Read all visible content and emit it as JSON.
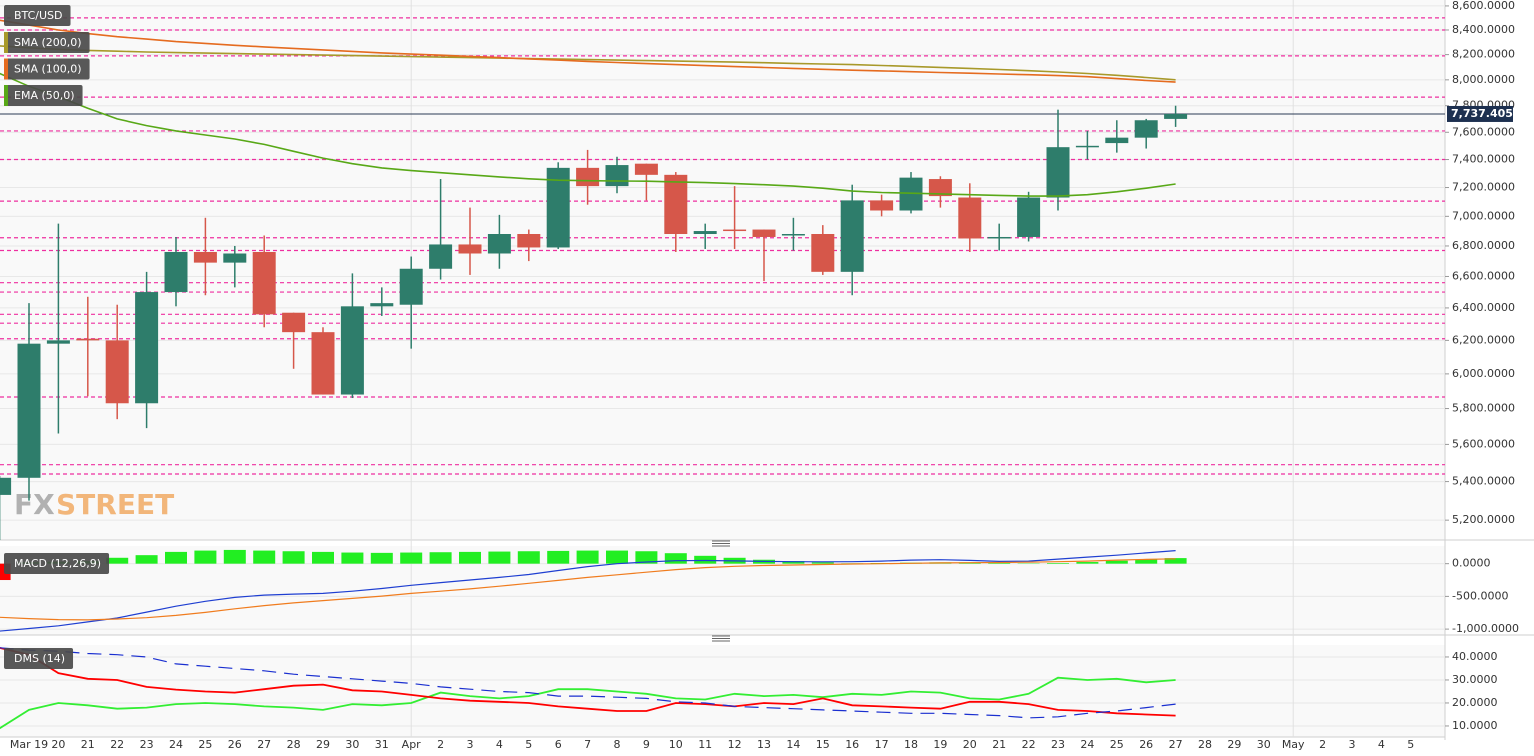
{
  "chart_data": [
    {
      "type": "candlestick",
      "title": "BTC/USD",
      "watermark": [
        "FX",
        "STREET"
      ],
      "log_scale": true,
      "ylim": [
        5100,
        8650
      ],
      "yticks": [
        {
          "value": 5200,
          "label": "5,200.0000"
        },
        {
          "value": 5400,
          "label": "5,400.0000"
        },
        {
          "value": 5600,
          "label": "5,600.0000"
        },
        {
          "value": 5800,
          "label": "5,800.0000"
        },
        {
          "value": 6000,
          "label": "6,000.0000"
        },
        {
          "value": 6200,
          "label": "6,200.0000"
        },
        {
          "value": 6400,
          "label": "6,400.0000"
        },
        {
          "value": 6600,
          "label": "6,600.0000"
        },
        {
          "value": 6800,
          "label": "6,800.0000"
        },
        {
          "value": 7000,
          "label": "7,000.0000"
        },
        {
          "value": 7200,
          "label": "7,200.0000"
        },
        {
          "value": 7400,
          "label": "7,400.0000"
        },
        {
          "value": 7600,
          "label": "7,600.0000"
        },
        {
          "value": 7800,
          "label": "7,800.0000"
        },
        {
          "value": 8000,
          "label": "8,000.0000"
        },
        {
          "value": 8200,
          "label": "8,200.0000"
        },
        {
          "value": 8400,
          "label": "8,400.0000"
        },
        {
          "value": 8600,
          "label": "8,600.0000"
        }
      ],
      "up_color": "#2e7d6b",
      "down_color": "#d6574a",
      "open": [
        5330,
        5420,
        6180,
        6210,
        6200,
        5830,
        6500,
        6760,
        6690,
        6760,
        6370,
        6250,
        5880,
        6410,
        6420,
        6650,
        6810,
        6750,
        6880,
        6790,
        7340,
        7210,
        7370,
        7290,
        6880,
        6910,
        6910,
        6870,
        6880,
        6630,
        7110,
        7040,
        7260,
        7130,
        6850,
        6860,
        7130,
        7490,
        7520,
        7560,
        7700,
        null,
        null,
        null,
        null,
        null,
        null,
        null,
        null
      ],
      "high": [
        5430,
        6430,
        6950,
        6470,
        6420,
        6630,
        6860,
        6990,
        6800,
        6870,
        6370,
        6280,
        6620,
        6530,
        6730,
        7260,
        7060,
        7010,
        6910,
        7380,
        7470,
        7420,
        7370,
        7310,
        6950,
        7210,
        6910,
        6990,
        6940,
        7220,
        7150,
        7310,
        7280,
        7230,
        6950,
        7170,
        7770,
        7610,
        7690,
        7700,
        7800,
        null,
        null,
        null,
        null,
        null,
        null,
        null,
        null
      ],
      "low": [
        5100,
        5300,
        5660,
        5870,
        5740,
        5690,
        6410,
        6480,
        6530,
        6280,
        6030,
        5880,
        5860,
        6350,
        6150,
        6580,
        6610,
        6650,
        6700,
        6780,
        7080,
        7160,
        7110,
        6760,
        6780,
        6780,
        6570,
        6770,
        6610,
        6480,
        7000,
        7020,
        7060,
        6760,
        6770,
        6830,
        7040,
        7400,
        7450,
        7480,
        7640,
        null,
        null,
        null,
        null,
        null,
        null,
        null,
        null
      ],
      "close": [
        5420,
        6180,
        6200,
        6200,
        5830,
        6500,
        6760,
        6690,
        6750,
        6360,
        6250,
        5880,
        6410,
        6430,
        6650,
        6810,
        6750,
        6880,
        6790,
        7340,
        7210,
        7360,
        7290,
        6880,
        6900,
        6900,
        6860,
        6880,
        6630,
        7110,
        7040,
        7270,
        7140,
        6850,
        6860,
        7130,
        7490,
        7500,
        7560,
        7690,
        7737.4059,
        null,
        null,
        null,
        null,
        null,
        null,
        null,
        null
      ],
      "last_price": {
        "value": 7737.4059,
        "label": "7,737.4059"
      },
      "level_color": "#ee2fa0",
      "levels": [
        8500,
        8400,
        8190,
        7866,
        7610,
        7400,
        7105,
        6855,
        6770,
        6560,
        6500,
        6360,
        6305,
        6210,
        5866,
        5490,
        5440
      ],
      "series": [
        {
          "name": "SMA (200,0)",
          "color": "#a8992a",
          "values": [
            8270,
            8255,
            8243,
            8234,
            8227,
            8221,
            8216,
            8212,
            8208,
            8204,
            8200,
            8196,
            8192,
            8188,
            8184,
            8180,
            8176,
            8172,
            8168,
            8164,
            8160,
            8156,
            8152,
            8148,
            8144,
            8140,
            8135,
            8130,
            8125,
            8120,
            8113,
            8106,
            8098,
            8090,
            8081,
            8072,
            8062,
            8050,
            8036,
            8018,
            8000,
            null,
            null,
            null,
            null,
            null,
            null,
            null,
            null
          ]
        },
        {
          "name": "SMA (100,0)",
          "color": "#e56b1f",
          "values": [
            8480,
            8440,
            8400,
            8370,
            8345,
            8325,
            8305,
            8290,
            8275,
            8262,
            8250,
            8238,
            8226,
            8214,
            8204,
            8195,
            8186,
            8176,
            8166,
            8156,
            8146,
            8137,
            8128,
            8120,
            8112,
            8104,
            8097,
            8090,
            8083,
            8076,
            8070,
            8064,
            8058,
            8052,
            8046,
            8040,
            8033,
            8025,
            8010,
            7995,
            7982,
            null,
            null,
            null,
            null,
            null,
            null,
            null,
            null
          ]
        },
        {
          "name": "EMA (50,0)",
          "color": "#58a817",
          "values": [
            8050,
            7950,
            7870,
            7780,
            7700,
            7650,
            7610,
            7580,
            7550,
            7510,
            7460,
            7410,
            7370,
            7340,
            7320,
            7305,
            7290,
            7275,
            7262,
            7252,
            7248,
            7246,
            7245,
            7240,
            7235,
            7228,
            7220,
            7210,
            7195,
            7175,
            7165,
            7160,
            7155,
            7150,
            7145,
            7140,
            7140,
            7150,
            7170,
            7195,
            7225,
            null,
            null,
            null,
            null,
            null,
            null,
            null,
            null
          ]
        }
      ]
    },
    {
      "type": "macd",
      "title": "MACD (12,26,9)",
      "ylim": [
        -1090,
        270
      ],
      "yticks": [
        {
          "value": 0,
          "label": "0.0000"
        },
        {
          "value": -500,
          "label": "-500.0000"
        },
        {
          "value": -1000,
          "label": "-1,000.0000"
        }
      ],
      "histogram": {
        "up_color": "#22ee22",
        "down_color": "#ff0000",
        "values": [
          -250,
          20,
          30,
          40,
          90,
          130,
          180,
          200,
          210,
          200,
          190,
          180,
          170,
          165,
          170,
          175,
          180,
          185,
          190,
          195,
          200,
          200,
          190,
          160,
          120,
          90,
          60,
          40,
          20,
          5,
          10,
          15,
          20,
          20,
          10,
          5,
          10,
          25,
          45,
          65,
          85,
          null,
          null,
          null,
          null,
          null,
          null,
          null,
          null
        ]
      },
      "series": [
        {
          "color": "#1f3fd1",
          "values": [
            -1030,
            -990,
            -950,
            -890,
            -830,
            -740,
            -650,
            -575,
            -515,
            -480,
            -465,
            -455,
            -420,
            -380,
            -330,
            -290,
            -250,
            -210,
            -165,
            -105,
            -45,
            0,
            25,
            45,
            48,
            42,
            35,
            30,
            28,
            30,
            40,
            55,
            60,
            50,
            35,
            40,
            70,
            100,
            130,
            165,
            200,
            null,
            null,
            null,
            null,
            null,
            null,
            null,
            null
          ]
        },
        {
          "color": "#f07c1e",
          "values": [
            -820,
            -840,
            -855,
            -860,
            -845,
            -825,
            -790,
            -745,
            -690,
            -640,
            -600,
            -565,
            -530,
            -495,
            -455,
            -420,
            -385,
            -345,
            -300,
            -255,
            -210,
            -170,
            -130,
            -90,
            -60,
            -40,
            -28,
            -20,
            -12,
            -5,
            0,
            5,
            12,
            15,
            18,
            22,
            30,
            40,
            55,
            65,
            75,
            null,
            null,
            null,
            null,
            null,
            null,
            null,
            null
          ]
        }
      ]
    },
    {
      "type": "line",
      "title": "DMS (14)",
      "categories": [
        null,
        "Mar 19",
        "20",
        "21",
        "22",
        "23",
        "24",
        "25",
        "26",
        "27",
        "28",
        "29",
        "30",
        "31",
        "Apr",
        "2",
        "3",
        "4",
        "5",
        "6",
        "7",
        "8",
        "9",
        "10",
        "11",
        "12",
        "13",
        "14",
        "15",
        "16",
        "17",
        "18",
        "19",
        "20",
        "21",
        "22",
        "23",
        "24",
        "25",
        "26",
        "27",
        "28",
        "29",
        "30",
        "May",
        "2",
        "3",
        "4",
        "5"
      ],
      "ylim": [
        5.2,
        45.2
      ],
      "yticks": [
        {
          "value": 40,
          "label": "40.0000"
        },
        {
          "value": 30,
          "label": "30.0000"
        },
        {
          "value": 20,
          "label": "20.0000"
        },
        {
          "value": 10,
          "label": "10.0000"
        }
      ],
      "series": [
        {
          "color": "#33ee33",
          "values": [
            9,
            17,
            20,
            19,
            17.5,
            18,
            19.5,
            20,
            19.5,
            18.5,
            18,
            17,
            19.5,
            19,
            20,
            24.5,
            23,
            22,
            23,
            26,
            26,
            25,
            24,
            22,
            21.5,
            24,
            23,
            23.5,
            22.5,
            24,
            23.5,
            25,
            24.5,
            22,
            21.5,
            24,
            31,
            30,
            30.5,
            29,
            30,
            null,
            null,
            null,
            null,
            null,
            null,
            null,
            null
          ]
        },
        {
          "color": "#ff0000",
          "values": [
            44,
            41,
            33,
            30.5,
            30,
            27,
            25.8,
            25,
            24.5,
            26,
            27.5,
            28,
            25.5,
            25,
            23.5,
            22,
            21,
            20.5,
            20,
            18.5,
            17.5,
            16.5,
            16.5,
            20,
            19.5,
            18.5,
            20,
            19.5,
            22,
            19,
            18.5,
            18,
            17.5,
            20.5,
            20.5,
            19.5,
            17,
            16.5,
            15.5,
            15,
            14.5,
            null,
            null,
            null,
            null,
            null,
            null,
            null,
            null
          ]
        },
        {
          "color": "#1a2fd0",
          "dashed": true,
          "values": [
            44,
            43,
            42.5,
            41.5,
            41,
            40,
            37,
            36,
            35,
            34,
            32.5,
            31.5,
            30.5,
            29.5,
            28.5,
            27,
            26,
            25,
            24.5,
            23,
            23,
            22.5,
            22,
            20.5,
            20,
            18.5,
            18,
            17.5,
            17,
            16.5,
            16,
            15.5,
            15.5,
            15,
            14.5,
            13.5,
            14,
            15.5,
            16.5,
            18,
            19.5,
            null,
            null,
            null,
            null,
            null,
            null,
            null,
            null
          ]
        }
      ]
    }
  ]
}
